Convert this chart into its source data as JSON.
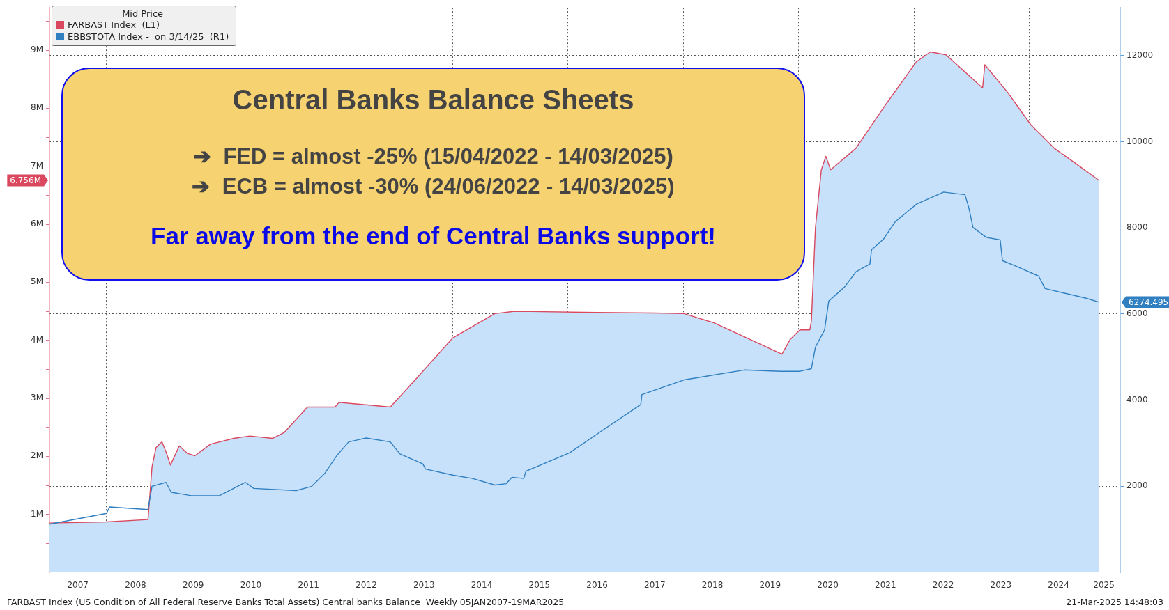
{
  "chart_data": {
    "type": "line",
    "title": "Central Banks Balance Sheets",
    "legend_title": "Mid Price",
    "legend": "top left",
    "grid": true,
    "marker": "none",
    "line_style": "solid",
    "annotations": [
      "➔  FED = almost -25% (15/04/2022 - 14/03/2025)",
      "➔  ECB = almost -30% (24/06/2022 - 14/03/2025)",
      "Far away from the end of Central Banks support!",
      "FARBAST Index (US Condition of All Federal Reserve Banks Total Assets) Central banks Balance  Weekly 05JAN2007-19MAR2025",
      "21-Mar-2025 14:48:03",
      "6.756M",
      "6274.495"
    ],
    "xlim": [
      "2007-01-05",
      "2025-07-27"
    ],
    "xticks": [
      {
        "value": "2007-07-02",
        "label": "2007"
      },
      {
        "value": "2008-01-01",
        "label": null
      },
      {
        "value": "2008-07-02",
        "label": "2008"
      },
      {
        "value": "2009-07-02",
        "label": "2009"
      },
      {
        "value": "2010-01-01",
        "label": null
      },
      {
        "value": "2010-07-02",
        "label": "2010"
      },
      {
        "value": "2011-07-02",
        "label": "2011"
      },
      {
        "value": "2012-01-01",
        "label": null
      },
      {
        "value": "2012-07-02",
        "label": "2012"
      },
      {
        "value": "2013-07-02",
        "label": "2013"
      },
      {
        "value": "2014-01-01",
        "label": null
      },
      {
        "value": "2014-07-02",
        "label": "2014"
      },
      {
        "value": "2015-07-02",
        "label": "2015"
      },
      {
        "value": "2016-01-01",
        "label": null
      },
      {
        "value": "2016-07-02",
        "label": "2016"
      },
      {
        "value": "2017-07-02",
        "label": "2017"
      },
      {
        "value": "2018-01-01",
        "label": null
      },
      {
        "value": "2018-07-02",
        "label": "2018"
      },
      {
        "value": "2019-07-02",
        "label": "2019"
      },
      {
        "value": "2020-01-01",
        "label": null
      },
      {
        "value": "2020-07-02",
        "label": "2020"
      },
      {
        "value": "2021-07-02",
        "label": "2021"
      },
      {
        "value": "2022-01-01",
        "label": null
      },
      {
        "value": "2022-07-02",
        "label": "2022"
      },
      {
        "value": "2023-07-02",
        "label": "2023"
      },
      {
        "value": "2024-01-01",
        "label": null
      },
      {
        "value": "2024-07-02",
        "label": "2024"
      },
      {
        "value": "2025-04-15",
        "label": "2025"
      }
    ],
    "ylim": [
      0,
      9730000
    ],
    "yticks": [
      {
        "value": 500000,
        "label": null
      },
      {
        "value": 1000000,
        "label": "1M"
      },
      {
        "value": 1500000,
        "label": null
      },
      {
        "value": 2000000,
        "label": "2M"
      },
      {
        "value": 2500000,
        "label": null
      },
      {
        "value": 3000000,
        "label": "3M"
      },
      {
        "value": 3500000,
        "label": null
      },
      {
        "value": 4000000,
        "label": "4M"
      },
      {
        "value": 4500000,
        "label": null
      },
      {
        "value": 5000000,
        "label": "5M"
      },
      {
        "value": 5500000,
        "label": null
      },
      {
        "value": 6000000,
        "label": "6M"
      },
      {
        "value": 6500000,
        "label": null
      },
      {
        "value": 7000000,
        "label": "7M"
      },
      {
        "value": 7500000,
        "label": null
      },
      {
        "value": 8000000,
        "label": "8M"
      },
      {
        "value": 8500000,
        "label": null
      },
      {
        "value": 9000000,
        "label": "9M"
      },
      {
        "value": 9500000,
        "label": null
      }
    ],
    "y2lim": [
      0,
      13110
    ],
    "y2ticks": [
      2000,
      4000,
      6000,
      8000,
      10000,
      12000
    ],
    "series": [
      {
        "type": "area",
        "color": "#c8e1fa",
        "axis": "y",
        "x": [
          "2007-01-05",
          "2008-01-01",
          "2008-09-20",
          "2008-10-15",
          "2008-11-10",
          "2008-12-17",
          "2009-01-12",
          "2009-02-10",
          "2009-04-05",
          "2009-05-26",
          "2009-07-12",
          "2009-10-20",
          "2010-03-15",
          "2010-06-25",
          "2010-11-17",
          "2011-01-30",
          "2011-06-25",
          "2011-12-17",
          "2012-01-12",
          "2012-12-02",
          "2013-05-08",
          "2014-01-01",
          "2014-09-24",
          "2015-01-30",
          "2016-07-01",
          "2017-07-01",
          "2018-01-05",
          "2018-07-12",
          "2019-03-08",
          "2019-09-16",
          "2019-11-06",
          "2020-01-08",
          "2020-03-10",
          "2020-03-20",
          "2020-04-15",
          "2020-05-22",
          "2020-06-20",
          "2020-07-20",
          "2020-12-28",
          "2021-06-20",
          "2022-01-15",
          "2022-04-12",
          "2022-07-20",
          "2023-03-08",
          "2023-03-22",
          "2023-08-15",
          "2024-01-10",
          "2024-06-05",
          "2024-10-08",
          "2025-03-14"
        ],
        "values": [
          850000,
          870000,
          910000,
          1820000,
          2150000,
          2250000,
          2080000,
          1850000,
          2180000,
          2050000,
          2010000,
          2210000,
          2310000,
          2350000,
          2310000,
          2410000,
          2850000,
          2850000,
          2930000,
          2850000,
          3320000,
          4040000,
          4460000,
          4500000,
          4480000,
          4470000,
          4460000,
          4300000,
          4000000,
          3760000,
          4010000,
          4180000,
          4180000,
          4340000,
          5940000,
          6940000,
          7170000,
          6940000,
          7310000,
          8010000,
          8800000,
          8970000,
          8920000,
          8350000,
          8750000,
          8270000,
          7710000,
          7310000,
          7070000,
          6756000
        ]
      },
      {
        "name": "FARBAST Index  (L1)",
        "color": "#d9485f",
        "axis": "y",
        "x": [
          "2007-01-05",
          "2008-01-01",
          "2008-09-20",
          "2008-10-15",
          "2008-11-10",
          "2008-12-17",
          "2009-01-12",
          "2009-02-10",
          "2009-04-05",
          "2009-05-26",
          "2009-07-12",
          "2009-10-20",
          "2010-03-15",
          "2010-06-25",
          "2010-11-17",
          "2011-01-30",
          "2011-06-25",
          "2011-12-17",
          "2012-01-12",
          "2012-12-02",
          "2013-05-08",
          "2014-01-01",
          "2014-09-24",
          "2015-01-30",
          "2016-07-01",
          "2017-07-01",
          "2018-01-05",
          "2018-07-12",
          "2019-03-08",
          "2019-09-16",
          "2019-11-06",
          "2020-01-08",
          "2020-03-10",
          "2020-03-20",
          "2020-04-15",
          "2020-05-22",
          "2020-06-20",
          "2020-07-20",
          "2020-12-28",
          "2021-06-20",
          "2022-01-15",
          "2022-04-12",
          "2022-07-20",
          "2023-03-08",
          "2023-03-22",
          "2023-08-15",
          "2024-01-10",
          "2024-06-05",
          "2024-10-08",
          "2025-03-14"
        ],
        "values": [
          850000,
          870000,
          910000,
          1820000,
          2150000,
          2250000,
          2080000,
          1850000,
          2180000,
          2050000,
          2010000,
          2210000,
          2310000,
          2350000,
          2310000,
          2410000,
          2850000,
          2850000,
          2930000,
          2850000,
          3320000,
          4040000,
          4460000,
          4500000,
          4480000,
          4470000,
          4460000,
          4300000,
          4000000,
          3760000,
          4010000,
          4180000,
          4180000,
          4340000,
          5940000,
          6940000,
          7170000,
          6940000,
          7310000,
          8010000,
          8800000,
          8970000,
          8920000,
          8350000,
          8750000,
          8270000,
          7710000,
          7310000,
          7070000,
          6756000
        ]
      },
      {
        "name": "EBBSTOTA Index -  on 3/14/25  (R1)",
        "color": "#2f7fc1",
        "axis": "y2",
        "x": [
          "2007-01-05",
          "2008-01-01",
          "2008-01-20",
          "2008-09-20",
          "2008-10-15",
          "2009-01-12",
          "2009-02-15",
          "2009-06-20",
          "2009-12-15",
          "2010-05-28",
          "2010-07-20",
          "2011-04-15",
          "2011-07-22",
          "2011-10-15",
          "2011-12-28",
          "2012-03-12",
          "2012-07-01",
          "2012-12-02",
          "2013-02-02",
          "2013-06-25",
          "2013-07-12",
          "2014-01-01",
          "2014-05-05",
          "2014-09-24",
          "2014-12-05",
          "2015-01-12",
          "2015-03-25",
          "2015-04-08",
          "2016-01-12",
          "2016-07-01",
          "2017-04-05",
          "2017-04-12",
          "2018-01-05",
          "2019-01-20",
          "2019-09-06",
          "2020-01-08",
          "2020-03-20",
          "2020-04-15",
          "2020-06-12",
          "2020-07-08",
          "2020-10-15",
          "2020-12-28",
          "2021-03-25",
          "2021-04-05",
          "2021-06-20",
          "2021-09-02",
          "2022-01-15",
          "2022-07-05",
          "2022-11-18",
          "2022-12-12",
          "2023-01-08",
          "2023-04-01",
          "2023-06-28",
          "2023-07-12",
          "2023-10-08",
          "2024-02-28",
          "2024-04-08",
          "2024-12-20",
          "2025-03-14"
        ],
        "values": [
          1120,
          1370,
          1520,
          1460,
          2000,
          2090,
          1860,
          1780,
          1780,
          2090,
          1950,
          1900,
          2000,
          2310,
          2710,
          3030,
          3120,
          3030,
          2750,
          2520,
          2400,
          2260,
          2180,
          2030,
          2060,
          2210,
          2180,
          2350,
          2780,
          3210,
          3900,
          4130,
          4470,
          4700,
          4670,
          4670,
          4730,
          5230,
          5630,
          6300,
          6620,
          6980,
          7160,
          7490,
          7740,
          8140,
          8550,
          8830,
          8770,
          8470,
          8010,
          7780,
          7720,
          7240,
          7110,
          6880,
          6590,
          6370,
          6274.495
        ]
      }
    ]
  }
}
